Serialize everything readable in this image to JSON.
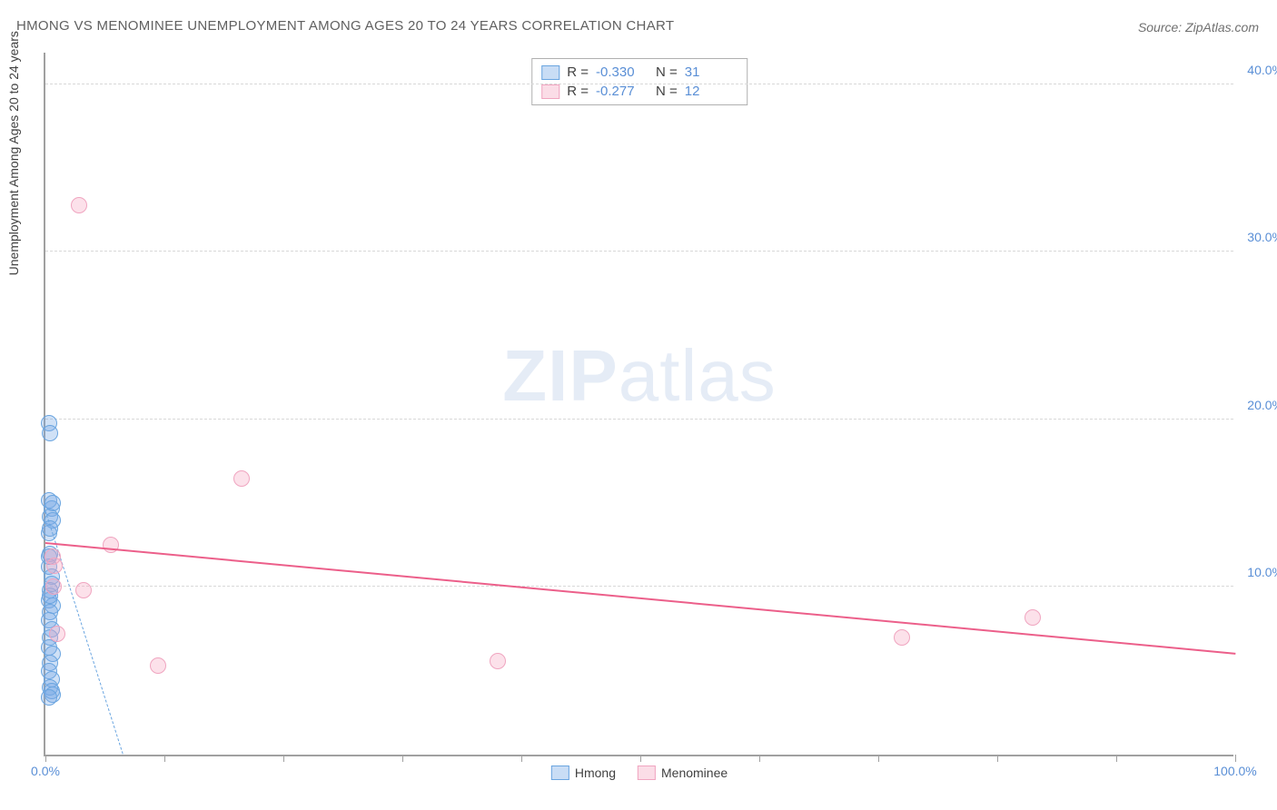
{
  "title": "HMONG VS MENOMINEE UNEMPLOYMENT AMONG AGES 20 TO 24 YEARS CORRELATION CHART",
  "source": "Source: ZipAtlas.com",
  "y_axis_title": "Unemployment Among Ages 20 to 24 years",
  "watermark": {
    "bold": "ZIP",
    "light": "atlas"
  },
  "chart": {
    "type": "scatter",
    "xlim": [
      0,
      100
    ],
    "ylim": [
      0,
      42
    ],
    "x_ticks": [
      0,
      10,
      20,
      30,
      40,
      50,
      60,
      70,
      80,
      90,
      100
    ],
    "x_tick_labels": {
      "0": "0.0%",
      "100": "100.0%"
    },
    "y_ticks": [
      10,
      20,
      30,
      40
    ],
    "y_tick_labels": {
      "10": "10.0%",
      "20": "20.0%",
      "30": "30.0%",
      "40": "40.0%"
    },
    "background_color": "#ffffff",
    "grid_color": "#d8d8d8",
    "axis_color": "#a0a0a0",
    "tick_label_color": "#5a8fd6",
    "series": [
      {
        "id": "hmong",
        "label": "Hmong",
        "color_fill": "rgba(120,170,230,0.35)",
        "color_stroke": "#6aa5e0",
        "R": "-0.330",
        "N": "31",
        "regression": {
          "x1": 0,
          "y1": 14.5,
          "x2": 6.5,
          "y2": 0,
          "dash": true,
          "color": "#6aa5e0",
          "width": 1.5
        },
        "points": [
          [
            0.3,
            19.8
          ],
          [
            0.4,
            19.2
          ],
          [
            0.3,
            15.2
          ],
          [
            0.5,
            14.7
          ],
          [
            0.4,
            14.2
          ],
          [
            0.6,
            14.0
          ],
          [
            0.3,
            13.2
          ],
          [
            0.4,
            12.0
          ],
          [
            0.3,
            11.2
          ],
          [
            0.5,
            10.6
          ],
          [
            0.4,
            9.8
          ],
          [
            0.3,
            9.2
          ],
          [
            0.6,
            8.9
          ],
          [
            0.4,
            8.5
          ],
          [
            0.3,
            8.0
          ],
          [
            0.5,
            7.5
          ],
          [
            0.4,
            7.0
          ],
          [
            0.3,
            6.4
          ],
          [
            0.6,
            6.0
          ],
          [
            0.4,
            5.5
          ],
          [
            0.3,
            5.0
          ],
          [
            0.5,
            4.5
          ],
          [
            0.4,
            4.0
          ],
          [
            0.5,
            3.8
          ],
          [
            0.6,
            3.6
          ],
          [
            0.3,
            3.4
          ],
          [
            0.4,
            9.5
          ],
          [
            0.5,
            10.2
          ],
          [
            0.3,
            11.8
          ],
          [
            0.4,
            13.5
          ],
          [
            0.6,
            15.0
          ]
        ]
      },
      {
        "id": "menominee",
        "label": "Menominee",
        "color_fill": "rgba(245,170,195,0.35)",
        "color_stroke": "#ec5f8a",
        "R": "-0.277",
        "N": "12",
        "regression": {
          "x1": 0,
          "y1": 12.6,
          "x2": 100,
          "y2": 6.0,
          "dash": false,
          "color": "#ec5f8a",
          "width": 2.5
        },
        "points": [
          [
            2.8,
            32.8
          ],
          [
            0.6,
            11.8
          ],
          [
            0.8,
            11.3
          ],
          [
            0.7,
            10.0
          ],
          [
            3.2,
            9.8
          ],
          [
            1.0,
            7.2
          ],
          [
            5.5,
            12.5
          ],
          [
            16.5,
            16.5
          ],
          [
            9.5,
            5.3
          ],
          [
            38.0,
            5.6
          ],
          [
            72.0,
            7.0
          ],
          [
            83.0,
            8.2
          ]
        ]
      }
    ]
  },
  "stats_legend_headers": {
    "R": "R =",
    "N": "N ="
  }
}
